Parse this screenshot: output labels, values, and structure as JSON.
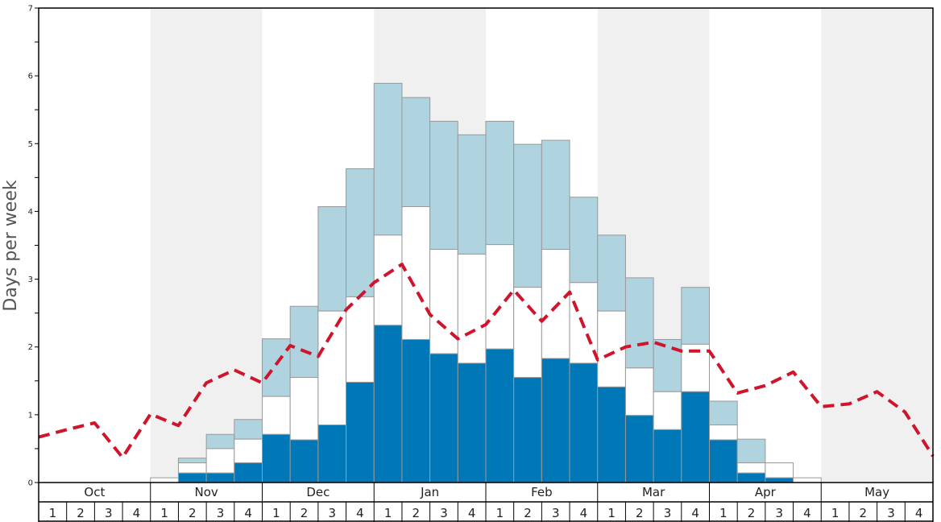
{
  "chart_data": {
    "type": "bar",
    "ylabel": "Days per week",
    "ylim": [
      0,
      7
    ],
    "y_ticks": [
      0,
      1,
      2,
      3,
      4,
      5,
      6,
      7
    ],
    "months": [
      "Oct",
      "Nov",
      "Dec",
      "Jan",
      "Feb",
      "Mar",
      "Apr",
      "May"
    ],
    "week_labels": [
      "1",
      "2",
      "3",
      "4"
    ],
    "shaded_months": [
      "Nov",
      "Jan",
      "Mar",
      "May"
    ],
    "stacked_bars": [
      {
        "month": "Oct",
        "week": "1",
        "dark": 0,
        "mid": 0,
        "total": 0
      },
      {
        "month": "Oct",
        "week": "2",
        "dark": 0,
        "mid": 0,
        "total": 0
      },
      {
        "month": "Oct",
        "week": "3",
        "dark": 0,
        "mid": 0,
        "total": 0
      },
      {
        "month": "Oct",
        "week": "4",
        "dark": 0,
        "mid": 0,
        "total": 0
      },
      {
        "month": "Nov",
        "week": "1",
        "dark": 0,
        "mid": 0.07,
        "total": 0.07
      },
      {
        "month": "Nov",
        "week": "2",
        "dark": 0.14,
        "mid": 0.29,
        "total": 0.36
      },
      {
        "month": "Nov",
        "week": "3",
        "dark": 0.14,
        "mid": 0.5,
        "total": 0.71
      },
      {
        "month": "Nov",
        "week": "4",
        "dark": 0.29,
        "mid": 0.64,
        "total": 0.93
      },
      {
        "month": "Dec",
        "week": "1",
        "dark": 0.71,
        "mid": 1.27,
        "total": 2.12
      },
      {
        "month": "Dec",
        "week": "2",
        "dark": 0.63,
        "mid": 1.55,
        "total": 2.6
      },
      {
        "month": "Dec",
        "week": "3",
        "dark": 0.85,
        "mid": 2.53,
        "total": 4.07
      },
      {
        "month": "Dec",
        "week": "4",
        "dark": 1.48,
        "mid": 2.74,
        "total": 4.63
      },
      {
        "month": "Jan",
        "week": "1",
        "dark": 2.32,
        "mid": 3.65,
        "total": 5.89
      },
      {
        "month": "Jan",
        "week": "2",
        "dark": 2.11,
        "mid": 4.07,
        "total": 5.68
      },
      {
        "month": "Jan",
        "week": "3",
        "dark": 1.9,
        "mid": 3.44,
        "total": 5.33
      },
      {
        "month": "Jan",
        "week": "4",
        "dark": 1.76,
        "mid": 3.37,
        "total": 5.13
      },
      {
        "month": "Feb",
        "week": "1",
        "dark": 1.97,
        "mid": 3.51,
        "total": 5.33
      },
      {
        "month": "Feb",
        "week": "2",
        "dark": 1.55,
        "mid": 2.88,
        "total": 4.99
      },
      {
        "month": "Feb",
        "week": "3",
        "dark": 1.83,
        "mid": 3.44,
        "total": 5.05
      },
      {
        "month": "Feb",
        "week": "4",
        "dark": 1.76,
        "mid": 2.95,
        "total": 4.21
      },
      {
        "month": "Mar",
        "week": "1",
        "dark": 1.41,
        "mid": 2.53,
        "total": 3.65
      },
      {
        "month": "Mar",
        "week": "2",
        "dark": 0.99,
        "mid": 1.69,
        "total": 3.02
      },
      {
        "month": "Mar",
        "week": "3",
        "dark": 0.78,
        "mid": 1.34,
        "total": 2.11
      },
      {
        "month": "Mar",
        "week": "4",
        "dark": 1.34,
        "mid": 2.04,
        "total": 2.88
      },
      {
        "month": "Apr",
        "week": "1",
        "dark": 0.63,
        "mid": 0.85,
        "total": 1.2
      },
      {
        "month": "Apr",
        "week": "2",
        "dark": 0.14,
        "mid": 0.29,
        "total": 0.64
      },
      {
        "month": "Apr",
        "week": "3",
        "dark": 0.07,
        "mid": 0.29,
        "total": 0.29
      },
      {
        "month": "Apr",
        "week": "4",
        "dark": 0,
        "mid": 0.07,
        "total": 0.07
      },
      {
        "month": "May",
        "week": "1",
        "dark": 0,
        "mid": 0,
        "total": 0
      },
      {
        "month": "May",
        "week": "2",
        "dark": 0,
        "mid": 0,
        "total": 0
      },
      {
        "month": "May",
        "week": "3",
        "dark": 0,
        "mid": 0,
        "total": 0
      },
      {
        "month": "May",
        "week": "4",
        "dark": 0,
        "mid": 0,
        "total": 0
      }
    ],
    "dashed_line": {
      "values": [
        0.67,
        0.78,
        0.88,
        0.37,
        1.01,
        0.84,
        1.47,
        1.66,
        1.47,
        2.02,
        1.86,
        2.55,
        2.95,
        3.22,
        2.48,
        2.12,
        2.33,
        2.84,
        2.38,
        2.81,
        1.81,
        2.0,
        2.07,
        1.94,
        1.94,
        1.32,
        1.43,
        1.63,
        1.12,
        1.16,
        1.34,
        1.04,
        0.39
      ],
      "color": "#d0142c"
    },
    "colors": {
      "dark": "#0077b6",
      "mid": "#ffffff",
      "light": "#afd4e0",
      "shade": "#f0f0f0",
      "bar_edge": "#999999"
    }
  }
}
